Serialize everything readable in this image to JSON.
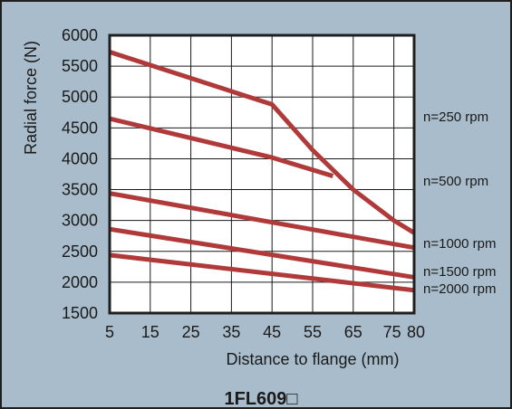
{
  "colors": {
    "background": "#a9bccb",
    "border": "#1f1f1f",
    "plot": "#ffffff",
    "grid": "#1a1a1a",
    "line": "#b03a3a"
  },
  "chart_data": {
    "type": "line",
    "title": "1FL609□",
    "xlabel": "Distance to flange (mm)",
    "ylabel": "Radial force (N)",
    "xlim": [
      5,
      80
    ],
    "ylim": [
      1500,
      6000
    ],
    "xticks": [
      5,
      15,
      25,
      35,
      45,
      55,
      65,
      75,
      80
    ],
    "yticks": [
      1500,
      2000,
      2500,
      3000,
      3500,
      4000,
      4500,
      5000,
      5500,
      6000
    ],
    "grid": true,
    "series": [
      {
        "name": "n=250 rpm",
        "x": [
          5,
          45,
          55,
          65,
          75,
          80
        ],
        "y": [
          5730,
          4880,
          4140,
          3500,
          3000,
          2800
        ]
      },
      {
        "name": "n=500 rpm",
        "x": [
          5,
          45,
          60
        ],
        "y": [
          4650,
          4020,
          3720
        ]
      },
      {
        "name": "n=1000 rpm",
        "x": [
          5,
          80
        ],
        "y": [
          3440,
          2560
        ]
      },
      {
        "name": "n=1500 rpm",
        "x": [
          5,
          80
        ],
        "y": [
          2860,
          2080
        ]
      },
      {
        "name": "n=2000 rpm",
        "x": [
          5,
          80
        ],
        "y": [
          2440,
          1870
        ]
      }
    ]
  }
}
